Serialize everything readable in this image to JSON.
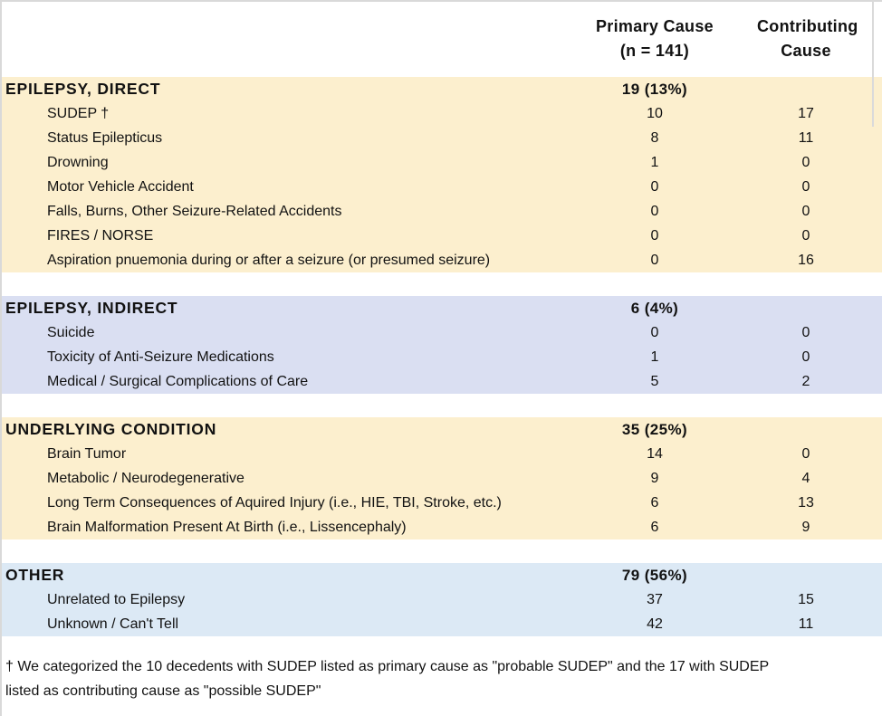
{
  "header": {
    "primary_line1": "Primary Cause",
    "primary_line2": "(n = 141)",
    "contributing_line1": "Contributing",
    "contributing_line2": "Cause"
  },
  "sections": [
    {
      "title": "EPILEPSY, DIRECT",
      "summary": "19 (13%)",
      "bg": "#FCEFCE",
      "rows": [
        {
          "label": "SUDEP †",
          "primary": "10",
          "contributing": "17"
        },
        {
          "label": "Status Epilepticus",
          "primary": "8",
          "contributing": "11"
        },
        {
          "label": "Drowning",
          "primary": "1",
          "contributing": "0"
        },
        {
          "label": "Motor Vehicle Accident",
          "primary": "0",
          "contributing": "0"
        },
        {
          "label": "Falls, Burns, Other Seizure-Related Accidents",
          "primary": "0",
          "contributing": "0"
        },
        {
          "label": "FIRES / NORSE",
          "primary": "0",
          "contributing": "0"
        },
        {
          "label": "Aspiration pnuemonia during or after a seizure (or presumed seizure)",
          "primary": "0",
          "contributing": "16"
        }
      ]
    },
    {
      "title": "EPILEPSY, INDIRECT",
      "summary": "6 (4%)",
      "bg": "#DADFF2",
      "rows": [
        {
          "label": "Suicide",
          "primary": "0",
          "contributing": "0"
        },
        {
          "label": "Toxicity of Anti-Seizure Medications",
          "primary": "1",
          "contributing": "0"
        },
        {
          "label": "Medical / Surgical Complications of Care",
          "primary": "5",
          "contributing": "2"
        }
      ]
    },
    {
      "title": "UNDERLYING CONDITION",
      "summary": "35 (25%)",
      "bg": "#FCEFCE",
      "rows": [
        {
          "label": "Brain Tumor",
          "primary": "14",
          "contributing": "0"
        },
        {
          "label": "Metabolic / Neurodegenerative",
          "primary": "9",
          "contributing": "4"
        },
        {
          "label": "Long Term Consequences of Aquired Injury (i.e., HIE, TBI, Stroke, etc.)",
          "primary": "6",
          "contributing": "13"
        },
        {
          "label": "Brain Malformation Present At Birth (i.e., Lissencephaly)",
          "primary": "6",
          "contributing": "9"
        }
      ]
    },
    {
      "title": "OTHER",
      "summary": "79 (56%)",
      "bg": "#DCE9F5",
      "rows": [
        {
          "label": "Unrelated to Epilepsy",
          "primary": "37",
          "contributing": "15"
        },
        {
          "label": "Unknown / Can't Tell",
          "primary": "42",
          "contributing": "11"
        }
      ]
    }
  ],
  "footnote": {
    "line1": "† We categorized the 10 decedents with SUDEP listed as primary cause as \"probable SUDEP\" and the 17  with SUDEP",
    "line2": "listed as contributing cause as \"possible SUDEP\""
  },
  "colors": {
    "cream_section_bg": "#FCEFCE",
    "lavender_section_bg": "#DADFF2",
    "blue_section_bg": "#DCE9F5",
    "frame_border": "#D9D9D9",
    "text": "#121212"
  }
}
